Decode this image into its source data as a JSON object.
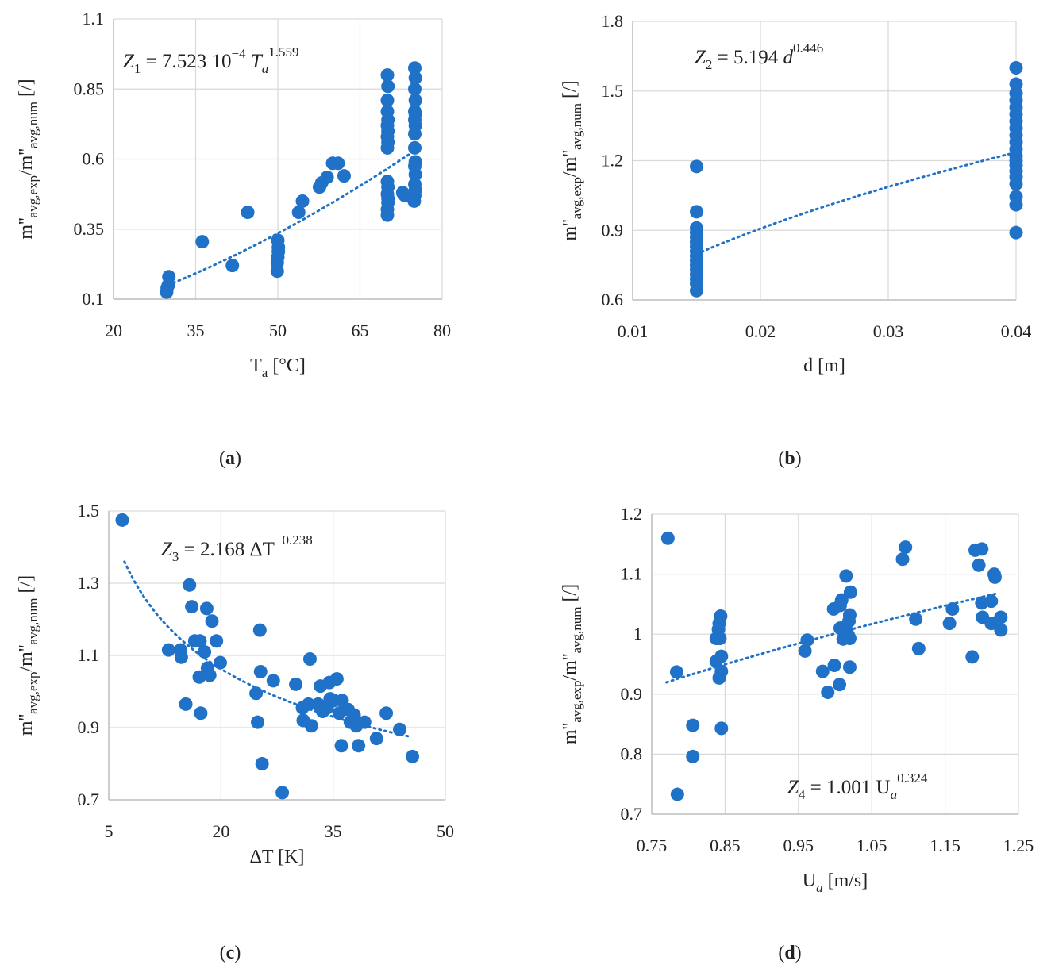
{
  "colors": {
    "point": "#1f72c8",
    "trend": "#1f72c8",
    "grid": "#d9d9d9",
    "axis": "#bfbfbf"
  },
  "chart_data": [
    {
      "id": "a",
      "type": "scatter",
      "panel_label": "a",
      "equation": {
        "lhs": "Z",
        "sub": "1",
        "rhs": "= 7.523 10",
        "exp": "−4",
        "var": "T",
        "var_sub": "a",
        "var_exp": "1.559"
      },
      "xlabel": {
        "main": "T",
        "sub": "a",
        "rest": " [°C]"
      },
      "ylabel": {
        "m1": "m''",
        "s1": "avg,exp",
        "mid": "/m''",
        "s2": "avg,num",
        "rest": " [/]"
      },
      "xlim": [
        20,
        80
      ],
      "ylim": [
        0.1,
        1.1
      ],
      "xticks": [
        20,
        35,
        50,
        65,
        80
      ],
      "xtick_labels": [
        "20",
        "35",
        "50",
        "65",
        "80"
      ],
      "yticks": [
        0.1,
        0.35,
        0.6,
        0.85,
        1.1
      ],
      "ytick_labels": [
        "0.1",
        "0.35",
        "0.6",
        "0.85",
        "1.1"
      ],
      "trend": {
        "type": "power",
        "a": 0.0007523,
        "b": 1.559,
        "xrange": [
          30,
          75
        ]
      },
      "points": [
        [
          29.7,
          0.125
        ],
        [
          29.8,
          0.14
        ],
        [
          30,
          0.15
        ],
        [
          30.1,
          0.18
        ],
        [
          36.2,
          0.305
        ],
        [
          41.7,
          0.22
        ],
        [
          44.5,
          0.41
        ],
        [
          49.9,
          0.2
        ],
        [
          49.9,
          0.23
        ],
        [
          50,
          0.25
        ],
        [
          50.1,
          0.27
        ],
        [
          50.1,
          0.285
        ],
        [
          50,
          0.31
        ],
        [
          53.8,
          0.41
        ],
        [
          54.5,
          0.45
        ],
        [
          57.6,
          0.5
        ],
        [
          58,
          0.515
        ],
        [
          59,
          0.535
        ],
        [
          60,
          0.585
        ],
        [
          61,
          0.585
        ],
        [
          62.1,
          0.54
        ],
        [
          70,
          0.4
        ],
        [
          70,
          0.42
        ],
        [
          70.1,
          0.445
        ],
        [
          70.1,
          0.46
        ],
        [
          70,
          0.475
        ],
        [
          70.1,
          0.5
        ],
        [
          70,
          0.52
        ],
        [
          70,
          0.64
        ],
        [
          70.1,
          0.66
        ],
        [
          70,
          0.68
        ],
        [
          70.1,
          0.7
        ],
        [
          70,
          0.72
        ],
        [
          70.1,
          0.74
        ],
        [
          70,
          0.77
        ],
        [
          70,
          0.81
        ],
        [
          70.1,
          0.86
        ],
        [
          70,
          0.9
        ],
        [
          72.8,
          0.48
        ],
        [
          73.2,
          0.47
        ],
        [
          74.9,
          0.45
        ],
        [
          75,
          0.47
        ],
        [
          75.1,
          0.49
        ],
        [
          75,
          0.51
        ],
        [
          75.1,
          0.545
        ],
        [
          75,
          0.575
        ],
        [
          75.1,
          0.59
        ],
        [
          75,
          0.64
        ],
        [
          75,
          0.69
        ],
        [
          75.1,
          0.72
        ],
        [
          75,
          0.74
        ],
        [
          75.1,
          0.76
        ],
        [
          75,
          0.77
        ],
        [
          75.1,
          0.81
        ],
        [
          75,
          0.85
        ],
        [
          75.1,
          0.89
        ],
        [
          75,
          0.925
        ]
      ]
    },
    {
      "id": "b",
      "type": "scatter",
      "panel_label": "b",
      "equation": {
        "lhs": "Z",
        "sub": "2",
        "rhs": "= 5.194 ",
        "exp": "",
        "var": "d",
        "var_sub": "",
        "var_exp": "0.446"
      },
      "xlabel": {
        "main": "d [m]",
        "sub": "",
        "rest": ""
      },
      "ylabel": {
        "m1": "m''",
        "s1": "avg,exp",
        "mid": "/m''",
        "s2": "avg,num",
        "rest": " [/]"
      },
      "xlim": [
        0.01,
        0.04
      ],
      "ylim": [
        0.6,
        1.8
      ],
      "xticks": [
        0.01,
        0.02,
        0.03,
        0.04
      ],
      "xtick_labels": [
        "0.01",
        "0.02",
        "0.03",
        "0.04"
      ],
      "yticks": [
        0.6,
        0.9,
        1.2,
        1.5,
        1.8
      ],
      "ytick_labels": [
        "0.6",
        "0.9",
        "1.2",
        "1.5",
        "1.8"
      ],
      "trend": {
        "type": "power",
        "a": 5.194,
        "b": 0.446,
        "xrange": [
          0.015,
          0.04
        ]
      },
      "points": [
        [
          0.015,
          0.64
        ],
        [
          0.015,
          0.67
        ],
        [
          0.015,
          0.69
        ],
        [
          0.015,
          0.71
        ],
        [
          0.015,
          0.73
        ],
        [
          0.015,
          0.75
        ],
        [
          0.015,
          0.77
        ],
        [
          0.015,
          0.79
        ],
        [
          0.015,
          0.81
        ],
        [
          0.015,
          0.83
        ],
        [
          0.015,
          0.85
        ],
        [
          0.015,
          0.87
        ],
        [
          0.015,
          0.89
        ],
        [
          0.015,
          0.91
        ],
        [
          0.015,
          0.98
        ],
        [
          0.015,
          1.175
        ],
        [
          0.04,
          0.89
        ],
        [
          0.04,
          1.01
        ],
        [
          0.04,
          1.045
        ],
        [
          0.04,
          1.1
        ],
        [
          0.04,
          1.13
        ],
        [
          0.04,
          1.155
        ],
        [
          0.04,
          1.18
        ],
        [
          0.04,
          1.2
        ],
        [
          0.04,
          1.22
        ],
        [
          0.04,
          1.25
        ],
        [
          0.04,
          1.28
        ],
        [
          0.04,
          1.31
        ],
        [
          0.04,
          1.34
        ],
        [
          0.04,
          1.37
        ],
        [
          0.04,
          1.4
        ],
        [
          0.04,
          1.43
        ],
        [
          0.04,
          1.46
        ],
        [
          0.04,
          1.49
        ],
        [
          0.04,
          1.53
        ],
        [
          0.04,
          1.6
        ]
      ]
    },
    {
      "id": "c",
      "type": "scatter",
      "panel_label": "c",
      "equation": {
        "lhs": "Z",
        "sub": "3",
        "rhs": "= 2.168  ΔT",
        "exp": "",
        "var": "",
        "var_sub": "",
        "var_exp": "−0.238"
      },
      "xlabel": {
        "main": "ΔT [K]",
        "sub": "",
        "rest": ""
      },
      "ylabel": {
        "m1": "m''",
        "s1": "avg,exp",
        "mid": "/m''",
        "s2": "avg,num",
        "rest": " [/]"
      },
      "xlim": [
        5,
        50
      ],
      "ylim": [
        0.7,
        1.5
      ],
      "xticks": [
        5,
        20,
        35,
        50
      ],
      "xtick_labels": [
        "5",
        "20",
        "35",
        "50"
      ],
      "yticks": [
        0.7,
        0.9,
        1.1,
        1.3,
        1.5
      ],
      "ytick_labels": [
        "0.7",
        "0.9",
        "1.1",
        "1.3",
        "1.5"
      ],
      "trend": {
        "type": "power",
        "a": 2.168,
        "b": -0.238,
        "xrange": [
          7.1,
          45.5
        ]
      },
      "points": [
        [
          6.8,
          1.475
        ],
        [
          13,
          1.115
        ],
        [
          14.6,
          1.115
        ],
        [
          14.7,
          1.095
        ],
        [
          15.3,
          0.965
        ],
        [
          15.8,
          1.295
        ],
        [
          16.1,
          1.235
        ],
        [
          16.5,
          1.14
        ],
        [
          17.2,
          1.14
        ],
        [
          17.1,
          1.04
        ],
        [
          17.3,
          0.94
        ],
        [
          17.8,
          1.11
        ],
        [
          18.1,
          1.23
        ],
        [
          18.2,
          1.065
        ],
        [
          18.5,
          1.045
        ],
        [
          18.8,
          1.195
        ],
        [
          19.4,
          1.14
        ],
        [
          19.9,
          1.08
        ],
        [
          24.7,
          0.995
        ],
        [
          24.9,
          0.915
        ],
        [
          25.2,
          1.17
        ],
        [
          25.3,
          1.055
        ],
        [
          25.5,
          0.8
        ],
        [
          27,
          1.03
        ],
        [
          28.2,
          0.72
        ],
        [
          30,
          1.02
        ],
        [
          30.9,
          0.955
        ],
        [
          31,
          0.92
        ],
        [
          31.7,
          0.965
        ],
        [
          31.9,
          1.09
        ],
        [
          32.1,
          0.905
        ],
        [
          33,
          0.965
        ],
        [
          33.3,
          1.015
        ],
        [
          33.6,
          0.945
        ],
        [
          34.2,
          0.955
        ],
        [
          34.5,
          1.025
        ],
        [
          34.6,
          0.98
        ],
        [
          35.1,
          0.975
        ],
        [
          35.5,
          1.035
        ],
        [
          35.8,
          0.94
        ],
        [
          36.1,
          0.85
        ],
        [
          36.2,
          0.975
        ],
        [
          37,
          0.95
        ],
        [
          37.3,
          0.915
        ],
        [
          37.8,
          0.935
        ],
        [
          38.1,
          0.905
        ],
        [
          38.4,
          0.85
        ],
        [
          39.2,
          0.915
        ],
        [
          40.8,
          0.87
        ],
        [
          42.1,
          0.94
        ],
        [
          43.9,
          0.895
        ],
        [
          45.6,
          0.82
        ]
      ]
    },
    {
      "id": "d",
      "type": "scatter",
      "panel_label": "d",
      "equation": {
        "lhs": "Z",
        "sub": "4",
        "rhs": "= 1.001 U",
        "exp": "",
        "var": "",
        "var_sub": "a",
        "var_exp": "0.324"
      },
      "xlabel": {
        "main": "U",
        "sub": "a",
        "rest": " [m/s]"
      },
      "ylabel": {
        "m1": "m''",
        "s1": "avg,exp",
        "mid": "/m''",
        "s2": "avg,num",
        "rest": " [/]"
      },
      "xlim": [
        0.75,
        1.25
      ],
      "ylim": [
        0.7,
        1.2
      ],
      "xticks": [
        0.75,
        0.85,
        0.95,
        1.05,
        1.15,
        1.25
      ],
      "xtick_labels": [
        "0.75",
        "0.85",
        "0.95",
        "1.05",
        "1.15",
        "1.25"
      ],
      "yticks": [
        0.7,
        0.8,
        0.9,
        1.0,
        1.1,
        1.2
      ],
      "ytick_labels": [
        "0.7",
        "0.8",
        "0.9",
        "1",
        "1.1",
        "1.2"
      ],
      "trend": {
        "type": "power",
        "a": 1.001,
        "b": 0.324,
        "xrange": [
          0.77,
          1.22
        ]
      },
      "points": [
        [
          0.772,
          1.16
        ],
        [
          0.784,
          0.937
        ],
        [
          0.785,
          0.733
        ],
        [
          0.806,
          0.848
        ],
        [
          0.806,
          0.796
        ],
        [
          0.838,
          0.955
        ],
        [
          0.838,
          0.993
        ],
        [
          0.841,
          1.008
        ],
        [
          0.842,
          1.018
        ],
        [
          0.842,
          0.927
        ],
        [
          0.843,
          0.993
        ],
        [
          0.844,
          1.03
        ],
        [
          0.845,
          0.963
        ],
        [
          0.845,
          0.938
        ],
        [
          0.845,
          0.843
        ],
        [
          0.959,
          0.972
        ],
        [
          0.962,
          0.99
        ],
        [
          0.983,
          0.938
        ],
        [
          0.99,
          0.903
        ],
        [
          0.998,
          1.042
        ],
        [
          0.999,
          0.948
        ],
        [
          1.006,
          0.916
        ],
        [
          1.007,
          1.048
        ],
        [
          1.007,
          1.01
        ],
        [
          1.009,
          1.057
        ],
        [
          1.011,
          0.992
        ],
        [
          1.014,
          1.012
        ],
        [
          1.015,
          1.097
        ],
        [
          1.016,
          1.005
        ],
        [
          1.018,
          0.998
        ],
        [
          1.019,
          1.022
        ],
        [
          1.02,
          0.945
        ],
        [
          1.02,
          0.993
        ],
        [
          1.02,
          1.032
        ],
        [
          1.021,
          1.07
        ],
        [
          1.092,
          1.125
        ],
        [
          1.096,
          1.145
        ],
        [
          1.11,
          1.025
        ],
        [
          1.114,
          0.976
        ],
        [
          1.156,
          1.018
        ],
        [
          1.16,
          1.042
        ],
        [
          1.187,
          0.962
        ],
        [
          1.191,
          1.14
        ],
        [
          1.196,
          1.115
        ],
        [
          1.2,
          1.142
        ],
        [
          1.2,
          1.052
        ],
        [
          1.201,
          1.028
        ],
        [
          1.213,
          1.055
        ],
        [
          1.213,
          1.018
        ],
        [
          1.217,
          1.1
        ],
        [
          1.218,
          1.095
        ],
        [
          1.226,
          1.028
        ],
        [
          1.226,
          1.007
        ]
      ]
    }
  ]
}
